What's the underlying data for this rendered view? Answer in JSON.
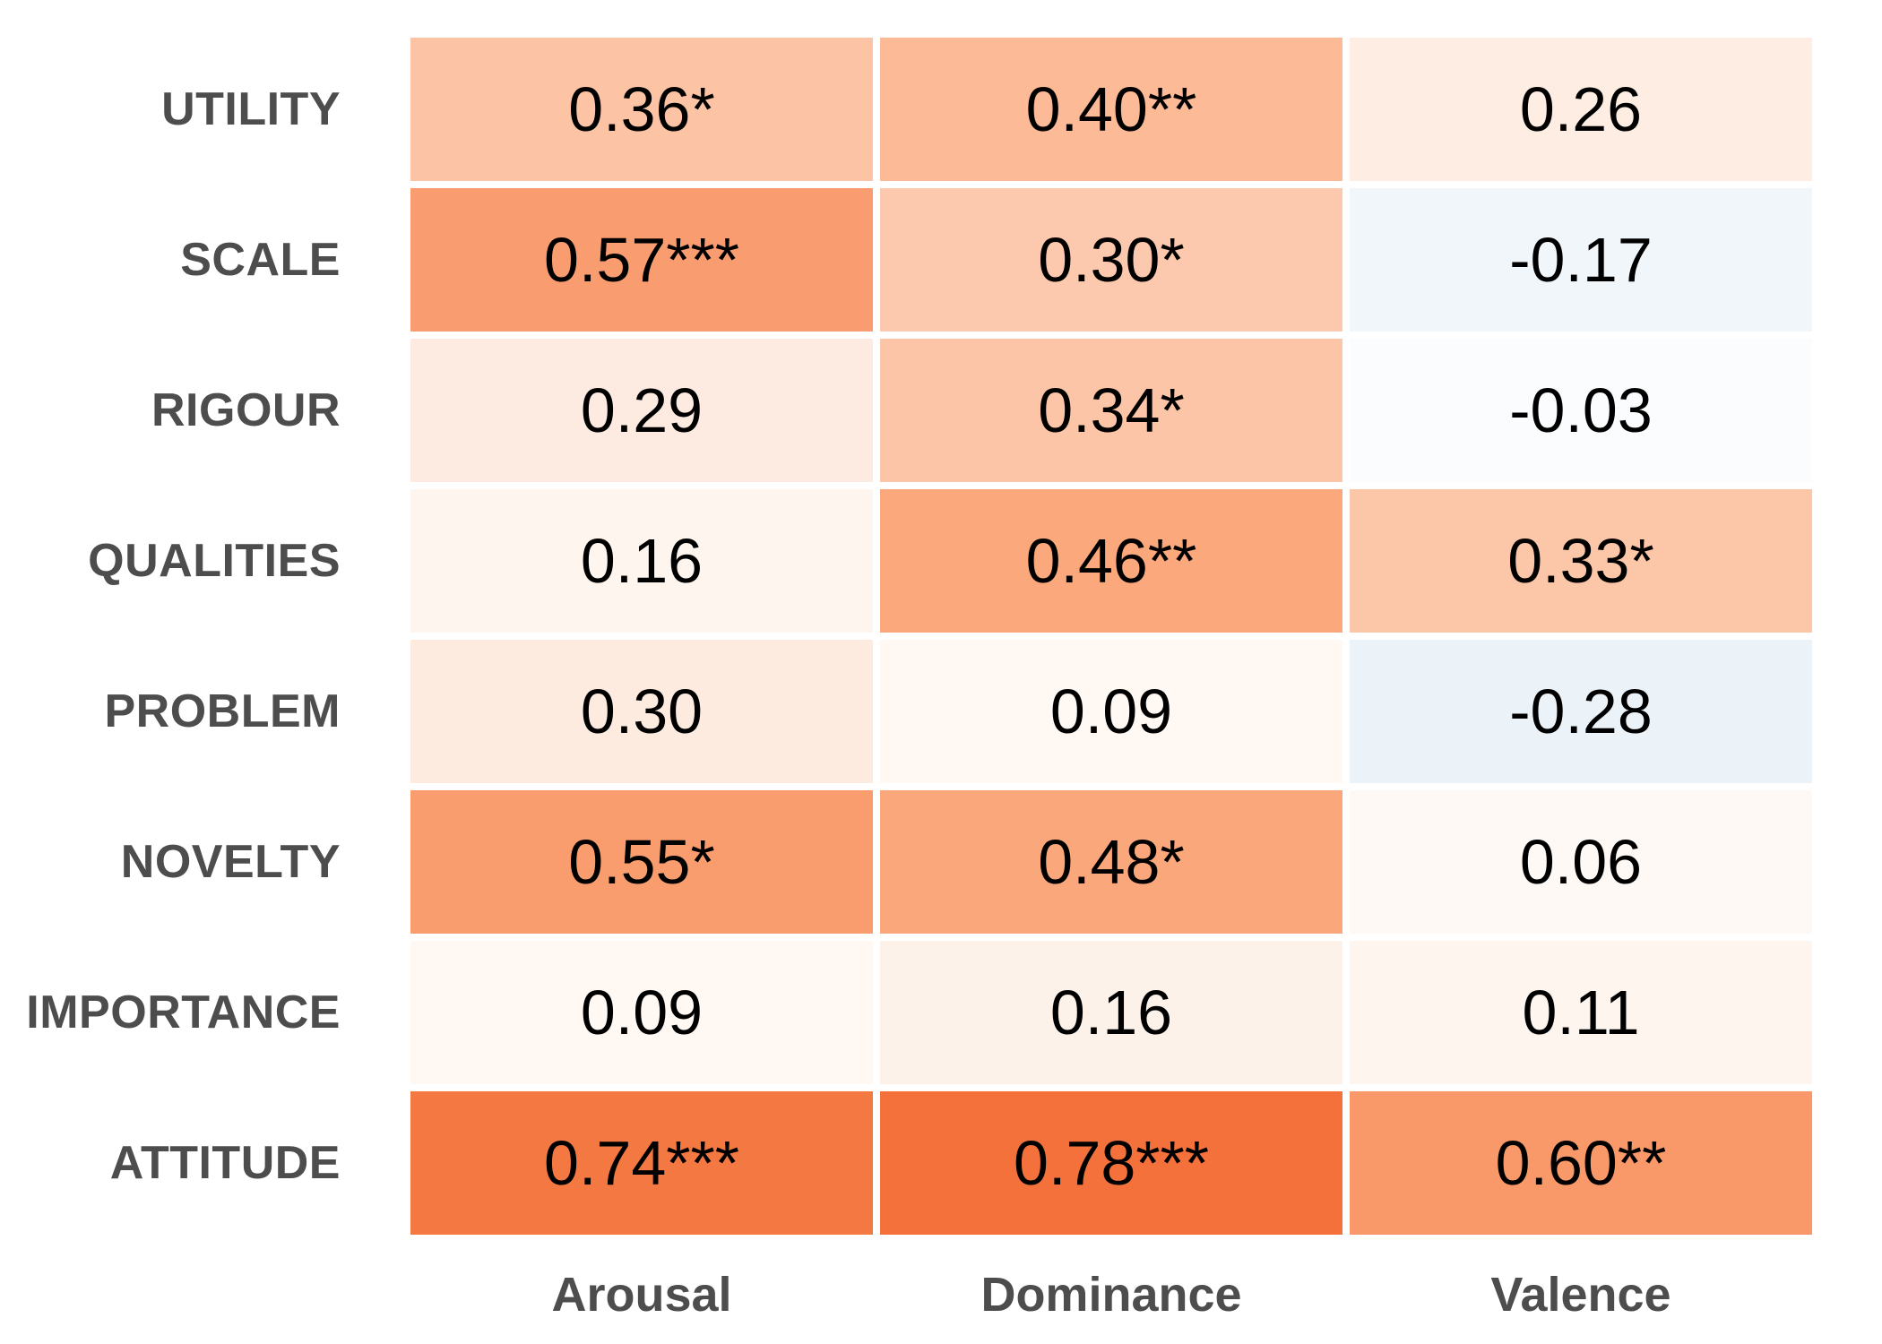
{
  "chart_data": {
    "type": "heatmap",
    "title": "",
    "x_categories": [
      "Arousal",
      "Dominance",
      "Valence"
    ],
    "y_categories": [
      "UTILITY",
      "SCALE",
      "RIGOUR",
      "QUALITIES",
      "PROBLEM",
      "NOVELTY",
      "IMPORTANCE",
      "ATTITUDE"
    ],
    "values": [
      [
        0.36,
        0.4,
        0.26
      ],
      [
        0.57,
        0.3,
        -0.17
      ],
      [
        0.29,
        0.34,
        -0.03
      ],
      [
        0.16,
        0.46,
        0.33
      ],
      [
        0.3,
        0.09,
        -0.28
      ],
      [
        0.55,
        0.48,
        0.06
      ],
      [
        0.09,
        0.16,
        0.11
      ],
      [
        0.74,
        0.78,
        0.6
      ]
    ],
    "cell_labels": [
      [
        "0.36*",
        "0.40**",
        "0.26"
      ],
      [
        "0.57***",
        "0.30*",
        "-0.17"
      ],
      [
        "0.29",
        "0.34*",
        "-0.03"
      ],
      [
        "0.16",
        "0.46**",
        "0.33*"
      ],
      [
        "0.30",
        "0.09",
        "-0.28"
      ],
      [
        "0.55*",
        "0.48*",
        "0.06"
      ],
      [
        "0.09",
        "0.16",
        "0.11"
      ],
      [
        "0.74***",
        "0.78***",
        "0.60**"
      ]
    ],
    "cell_colors": [
      [
        "#fcc4a5",
        "#fcba97",
        "#fdede2"
      ],
      [
        "#f99d70",
        "#fdc9ae",
        "#f1f6fa"
      ],
      [
        "#fdeae0",
        "#fcc5a7",
        "#fafcfd"
      ],
      [
        "#fef5ee",
        "#faa87c",
        "#fcc6a8"
      ],
      [
        "#fdebe0",
        "#fff8f3",
        "#ebf2f8"
      ],
      [
        "#f99d6f",
        "#faa77c",
        "#fff9f5"
      ],
      [
        "#fff8f3",
        "#fdf2ea",
        "#fff5ef"
      ],
      [
        "#f47841",
        "#f4713c",
        "#f99868"
      ]
    ],
    "legend_position": "none",
    "grid_lines": "off"
  },
  "styles": {
    "background": "#ffffff",
    "label_color": "#4d4d4d",
    "cell_text_color": "#000000",
    "positive_strong_color": "#f4713c",
    "negative_tint_color": "#ebf2f8"
  }
}
